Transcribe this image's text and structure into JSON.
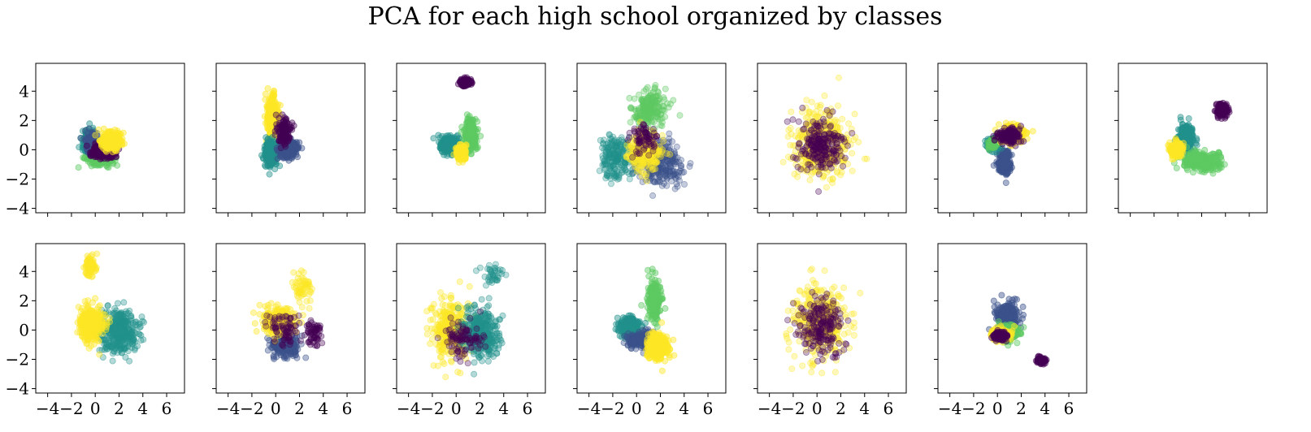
{
  "figure": {
    "title": "PCA for each high school organized by classes"
  },
  "colors": {
    "purple": "#440154",
    "indigo": "#3b528b",
    "teal": "#21918c",
    "green": "#5ec962",
    "yellow": "#fde725"
  },
  "chart_data": [
    {
      "type": "scatter",
      "panel": 1,
      "xlim": [
        -5,
        7.5
      ],
      "ylim": [
        -4.3,
        5.9
      ],
      "xticks": [
        -4,
        -2,
        0,
        2,
        4,
        6
      ],
      "yticks": [
        -4,
        -2,
        0,
        2,
        4
      ],
      "show_x_labels": false,
      "show_y_labels": true,
      "clusters": [
        {
          "color": "green",
          "center": [
            0.3,
            -0.6
          ],
          "spread": [
            0.7,
            0.3
          ],
          "n": 260,
          "alpha": 0.45
        },
        {
          "color": "teal",
          "center": [
            -0.5,
            0.6
          ],
          "spread": [
            0.35,
            0.45
          ],
          "n": 280,
          "alpha": 0.45
        },
        {
          "color": "indigo",
          "center": [
            -0.3,
            0.4
          ],
          "spread": [
            0.35,
            0.45
          ],
          "n": 200,
          "alpha": 0.45
        },
        {
          "color": "purple",
          "center": [
            0.8,
            -0.1
          ],
          "spread": [
            0.7,
            0.35
          ],
          "n": 280,
          "alpha": 0.45
        },
        {
          "color": "yellow",
          "center": [
            1.3,
            0.6
          ],
          "spread": [
            0.6,
            0.4
          ],
          "n": 300,
          "alpha": 0.45
        }
      ]
    },
    {
      "type": "scatter",
      "panel": 2,
      "xlim": [
        -5,
        7.5
      ],
      "ylim": [
        -4.3,
        5.9
      ],
      "xticks": [
        -4,
        -2,
        0,
        2,
        4,
        6
      ],
      "yticks": [
        -4,
        -2,
        0,
        2,
        4
      ],
      "show_x_labels": false,
      "show_y_labels": false,
      "clusters": [
        {
          "color": "yellow",
          "center": [
            -0.3,
            2.3
          ],
          "spread": [
            0.3,
            0.9
          ],
          "n": 280,
          "alpha": 0.45
        },
        {
          "color": "teal",
          "center": [
            -0.4,
            -0.2
          ],
          "spread": [
            0.35,
            0.6
          ],
          "n": 300,
          "alpha": 0.45
        },
        {
          "color": "indigo",
          "center": [
            1.1,
            0.1
          ],
          "spread": [
            0.5,
            0.4
          ],
          "n": 280,
          "alpha": 0.45
        },
        {
          "color": "purple",
          "center": [
            0.7,
            1.2
          ],
          "spread": [
            0.4,
            0.6
          ],
          "n": 120,
          "alpha": 0.4
        }
      ]
    },
    {
      "type": "scatter",
      "panel": 3,
      "xlim": [
        -5,
        7.5
      ],
      "ylim": [
        -4.3,
        5.9
      ],
      "xticks": [
        -4,
        -2,
        0,
        2,
        4,
        6
      ],
      "yticks": [
        -4,
        -2,
        0,
        2,
        4
      ],
      "show_x_labels": false,
      "show_y_labels": false,
      "clusters": [
        {
          "color": "purple",
          "center": [
            0.8,
            4.6
          ],
          "spread": [
            0.3,
            0.15
          ],
          "n": 160,
          "alpha": 0.45
        },
        {
          "color": "teal",
          "center": [
            -0.5,
            0.3
          ],
          "spread": [
            0.6,
            0.4
          ],
          "n": 260,
          "alpha": 0.45
        },
        {
          "color": "green",
          "center": [
            1.2,
            1.0
          ],
          "spread": [
            0.35,
            0.7
          ],
          "n": 240,
          "alpha": 0.45
        },
        {
          "color": "yellow",
          "center": [
            0.4,
            -0.2
          ],
          "spread": [
            0.3,
            0.35
          ],
          "n": 200,
          "alpha": 0.45
        }
      ]
    },
    {
      "type": "scatter",
      "panel": 4,
      "xlim": [
        -5,
        7.5
      ],
      "ylim": [
        -4.3,
        5.9
      ],
      "xticks": [
        -4,
        -2,
        0,
        2,
        4,
        6
      ],
      "yticks": [
        -4,
        -2,
        0,
        2,
        4
      ],
      "show_x_labels": false,
      "show_y_labels": false,
      "clusters": [
        {
          "color": "green",
          "center": [
            1.0,
            2.7
          ],
          "spread": [
            0.9,
            0.9
          ],
          "n": 200,
          "alpha": 0.35
        },
        {
          "color": "teal",
          "center": [
            -1.6,
            -0.5
          ],
          "spread": [
            0.9,
            1.0
          ],
          "n": 220,
          "alpha": 0.3
        },
        {
          "color": "indigo",
          "center": [
            2.0,
            -0.9
          ],
          "spread": [
            1.2,
            1.0
          ],
          "n": 260,
          "alpha": 0.3
        },
        {
          "color": "yellow",
          "center": [
            0.7,
            -0.2
          ],
          "spread": [
            0.9,
            0.9
          ],
          "n": 240,
          "alpha": 0.35
        },
        {
          "color": "purple",
          "center": [
            0.6,
            0.8
          ],
          "spread": [
            0.7,
            0.7
          ],
          "n": 80,
          "alpha": 0.3
        }
      ]
    },
    {
      "type": "scatter",
      "panel": 5,
      "xlim": [
        -5,
        7.5
      ],
      "ylim": [
        -4.3,
        5.9
      ],
      "xticks": [
        -4,
        -2,
        0,
        2,
        4,
        6
      ],
      "yticks": [
        -4,
        -2,
        0,
        2,
        4
      ],
      "show_x_labels": false,
      "show_y_labels": false,
      "clusters": [
        {
          "color": "yellow",
          "center": [
            0.3,
            0.4
          ],
          "spread": [
            1.6,
            1.5
          ],
          "n": 420,
          "alpha": 0.3
        },
        {
          "color": "purple",
          "center": [
            0.3,
            0.3
          ],
          "spread": [
            1.2,
            1.2
          ],
          "n": 220,
          "alpha": 0.3
        }
      ]
    },
    {
      "type": "scatter",
      "panel": 6,
      "xlim": [
        -5,
        7.5
      ],
      "ylim": [
        -4.3,
        5.9
      ],
      "xticks": [
        -4,
        -2,
        0,
        2,
        4,
        6
      ],
      "yticks": [
        -4,
        -2,
        0,
        2,
        4
      ],
      "show_x_labels": false,
      "show_y_labels": false,
      "clusters": [
        {
          "color": "indigo",
          "center": [
            0.6,
            -0.9
          ],
          "spread": [
            0.35,
            0.6
          ],
          "n": 220,
          "alpha": 0.45
        },
        {
          "color": "teal",
          "center": [
            -0.4,
            0.4
          ],
          "spread": [
            0.3,
            0.25
          ],
          "n": 180,
          "alpha": 0.45
        },
        {
          "color": "green",
          "center": [
            -0.4,
            0.4
          ],
          "spread": [
            0.2,
            0.2
          ],
          "n": 100,
          "alpha": 0.45
        },
        {
          "color": "yellow",
          "center": [
            1.3,
            1.1
          ],
          "spread": [
            0.7,
            0.4
          ],
          "n": 220,
          "alpha": 0.45
        },
        {
          "color": "purple",
          "center": [
            1.0,
            0.9
          ],
          "spread": [
            0.6,
            0.35
          ],
          "n": 140,
          "alpha": 0.4
        }
      ]
    },
    {
      "type": "scatter",
      "panel": 7,
      "xlim": [
        -5,
        7.5
      ],
      "ylim": [
        -4.3,
        5.9
      ],
      "xticks": [
        -4,
        -2,
        0,
        2,
        4,
        6
      ],
      "yticks": [
        -4,
        -2,
        0,
        2,
        4
      ],
      "show_x_labels": false,
      "show_y_labels": false,
      "clusters": [
        {
          "color": "purple",
          "center": [
            3.7,
            2.7
          ],
          "spread": [
            0.3,
            0.3
          ],
          "n": 140,
          "alpha": 0.45
        },
        {
          "color": "teal",
          "center": [
            0.7,
            0.8
          ],
          "spread": [
            0.4,
            0.6
          ],
          "n": 220,
          "alpha": 0.45
        },
        {
          "color": "green",
          "center": [
            2.0,
            -0.8
          ],
          "spread": [
            1.1,
            0.45
          ],
          "n": 280,
          "alpha": 0.45
        },
        {
          "color": "yellow",
          "center": [
            -0.1,
            0.0
          ],
          "spread": [
            0.35,
            0.35
          ],
          "n": 180,
          "alpha": 0.45
        }
      ]
    },
    {
      "type": "scatter",
      "panel": 8,
      "xlim": [
        -5,
        7.5
      ],
      "ylim": [
        -4.3,
        5.9
      ],
      "xticks": [
        -4,
        -2,
        0,
        2,
        4,
        6
      ],
      "yticks": [
        -4,
        -2,
        0,
        2,
        4
      ],
      "show_x_labels": true,
      "show_y_labels": true,
      "clusters": [
        {
          "color": "yellow",
          "center": [
            -0.4,
            4.3
          ],
          "spread": [
            0.3,
            0.5
          ],
          "n": 80,
          "alpha": 0.4
        },
        {
          "color": "teal",
          "center": [
            2.0,
            -0.2
          ],
          "spread": [
            1.1,
            1.0
          ],
          "n": 360,
          "alpha": 0.35
        },
        {
          "color": "yellow",
          "center": [
            -0.4,
            0.4
          ],
          "spread": [
            0.7,
            0.8
          ],
          "n": 320,
          "alpha": 0.4
        }
      ]
    },
    {
      "type": "scatter",
      "panel": 9,
      "xlim": [
        -5,
        7.5
      ],
      "ylim": [
        -4.3,
        5.9
      ],
      "xticks": [
        -4,
        -2,
        0,
        2,
        4,
        6
      ],
      "yticks": [
        -4,
        -2,
        0,
        2,
        4
      ],
      "show_x_labels": true,
      "show_y_labels": false,
      "clusters": [
        {
          "color": "indigo",
          "center": [
            0.8,
            -1.1
          ],
          "spread": [
            0.8,
            0.5
          ],
          "n": 220,
          "alpha": 0.4
        },
        {
          "color": "yellow",
          "center": [
            0.3,
            0.6
          ],
          "spread": [
            0.9,
            0.6
          ],
          "n": 280,
          "alpha": 0.4
        },
        {
          "color": "yellow",
          "center": [
            2.3,
            2.9
          ],
          "spread": [
            0.5,
            0.6
          ],
          "n": 60,
          "alpha": 0.35
        },
        {
          "color": "purple",
          "center": [
            3.2,
            -0.1
          ],
          "spread": [
            0.5,
            0.6
          ],
          "n": 60,
          "alpha": 0.35
        },
        {
          "color": "purple",
          "center": [
            0.7,
            0.1
          ],
          "spread": [
            0.8,
            0.7
          ],
          "n": 80,
          "alpha": 0.3
        }
      ]
    },
    {
      "type": "scatter",
      "panel": 10,
      "xlim": [
        -5,
        7.5
      ],
      "ylim": [
        -4.3,
        5.9
      ],
      "xticks": [
        -4,
        -2,
        0,
        2,
        4,
        6
      ],
      "yticks": [
        -4,
        -2,
        0,
        2,
        4
      ],
      "show_x_labels": true,
      "show_y_labels": false,
      "clusters": [
        {
          "color": "yellow",
          "center": [
            -0.5,
            0.0
          ],
          "spread": [
            1.1,
            1.3
          ],
          "n": 340,
          "alpha": 0.35
        },
        {
          "color": "teal",
          "center": [
            2.0,
            -0.2
          ],
          "spread": [
            1.0,
            1.1
          ],
          "n": 340,
          "alpha": 0.35
        },
        {
          "color": "teal",
          "center": [
            3.2,
            3.7
          ],
          "spread": [
            0.8,
            0.5
          ],
          "n": 40,
          "alpha": 0.3
        },
        {
          "color": "purple",
          "center": [
            0.6,
            -0.5
          ],
          "spread": [
            1.0,
            1.0
          ],
          "n": 100,
          "alpha": 0.3
        }
      ]
    },
    {
      "type": "scatter",
      "panel": 11,
      "xlim": [
        -5,
        7.5
      ],
      "ylim": [
        -4.3,
        5.9
      ],
      "xticks": [
        -4,
        -2,
        0,
        2,
        4,
        6
      ],
      "yticks": [
        -4,
        -2,
        0,
        2,
        4
      ],
      "show_x_labels": true,
      "show_y_labels": false,
      "clusters": [
        {
          "color": "green",
          "center": [
            1.5,
            2.0
          ],
          "spread": [
            0.4,
            1.0
          ],
          "n": 200,
          "alpha": 0.45
        },
        {
          "color": "teal",
          "center": [
            -0.5,
            0.2
          ],
          "spread": [
            0.6,
            0.5
          ],
          "n": 240,
          "alpha": 0.45
        },
        {
          "color": "indigo",
          "center": [
            0.3,
            -0.7
          ],
          "spread": [
            0.7,
            0.4
          ],
          "n": 160,
          "alpha": 0.4
        },
        {
          "color": "yellow",
          "center": [
            1.8,
            -1.2
          ],
          "spread": [
            0.6,
            0.6
          ],
          "n": 320,
          "alpha": 0.45
        }
      ]
    },
    {
      "type": "scatter",
      "panel": 12,
      "xlim": [
        -5,
        7.5
      ],
      "ylim": [
        -4.3,
        5.9
      ],
      "xticks": [
        -4,
        -2,
        0,
        2,
        4,
        6
      ],
      "yticks": [
        -4,
        -2,
        0,
        2,
        4
      ],
      "show_x_labels": true,
      "show_y_labels": false,
      "clusters": [
        {
          "color": "yellow",
          "center": [
            0.3,
            0.5
          ],
          "spread": [
            1.5,
            1.6
          ],
          "n": 380,
          "alpha": 0.3
        },
        {
          "color": "purple",
          "center": [
            0.3,
            0.3
          ],
          "spread": [
            1.2,
            1.3
          ],
          "n": 200,
          "alpha": 0.3
        }
      ]
    },
    {
      "type": "scatter",
      "panel": 13,
      "xlim": [
        -5,
        7.5
      ],
      "ylim": [
        -4.3,
        5.9
      ],
      "xticks": [
        -4,
        -2,
        0,
        2,
        4,
        6
      ],
      "yticks": [
        -4,
        -2,
        0,
        2,
        4
      ],
      "show_x_labels": true,
      "show_y_labels": false,
      "clusters": [
        {
          "color": "indigo",
          "center": [
            0.8,
            0.9
          ],
          "spread": [
            0.6,
            0.7
          ],
          "n": 260,
          "alpha": 0.45
        },
        {
          "color": "green",
          "center": [
            1.0,
            -0.2
          ],
          "spread": [
            0.6,
            0.35
          ],
          "n": 180,
          "alpha": 0.45
        },
        {
          "color": "yellow",
          "center": [
            0.2,
            -0.3
          ],
          "spread": [
            0.5,
            0.25
          ],
          "n": 160,
          "alpha": 0.45
        },
        {
          "color": "purple",
          "center": [
            0.2,
            -0.4
          ],
          "spread": [
            0.4,
            0.2
          ],
          "n": 120,
          "alpha": 0.45
        },
        {
          "color": "purple",
          "center": [
            3.7,
            -2.1
          ],
          "spread": [
            0.25,
            0.15
          ],
          "n": 100,
          "alpha": 0.45
        }
      ]
    }
  ]
}
